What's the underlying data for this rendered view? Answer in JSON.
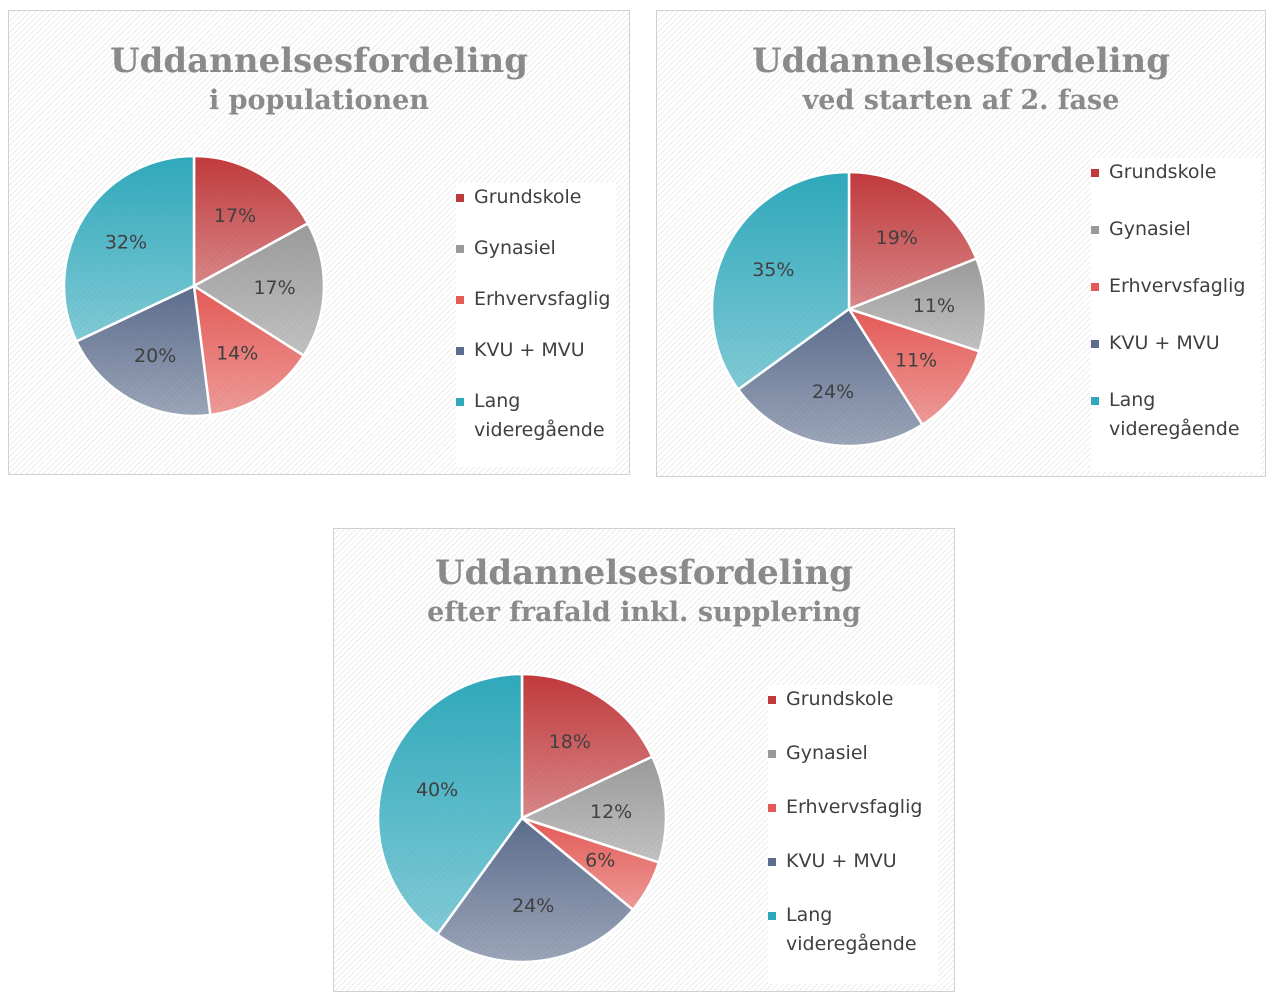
{
  "chart_data": [
    {
      "type": "pie",
      "title": "Uddannelsesfordeling",
      "subtitle": "i populationen",
      "categories": [
        "Grundskole",
        "Gynasiel",
        "Erhvervsfaglig",
        "KVU + MVU",
        "Lang videregående"
      ],
      "values": [
        17,
        17,
        14,
        20,
        32
      ],
      "value_labels": [
        "17%",
        "17%",
        "14%",
        "20%",
        "32%"
      ],
      "colors": [
        "#c0393c",
        "#9a9a9a",
        "#e35a56",
        "#5b6c8c",
        "#2fa8bb"
      ]
    },
    {
      "type": "pie",
      "title": "Uddannelsesfordeling",
      "subtitle": "ved starten af 2. fase",
      "categories": [
        "Grundskole",
        "Gynasiel",
        "Erhvervsfaglig",
        "KVU + MVU",
        "Lang videregående"
      ],
      "values": [
        19,
        11,
        11,
        24,
        35
      ],
      "value_labels": [
        "19%",
        "11%",
        "11%",
        "24%",
        "35%"
      ],
      "colors": [
        "#c0393c",
        "#9a9a9a",
        "#e35a56",
        "#5b6c8c",
        "#2fa8bb"
      ]
    },
    {
      "type": "pie",
      "title": "Uddannelsesfordeling",
      "subtitle": "efter frafald inkl. supplering",
      "categories": [
        "Grundskole",
        "Gynasiel",
        "Erhvervsfaglig",
        "KVU + MVU",
        "Lang videregående"
      ],
      "values": [
        18,
        12,
        6,
        24,
        40
      ],
      "value_labels": [
        "18%",
        "12%",
        "6%",
        "24%",
        "40%"
      ],
      "colors": [
        "#c0393c",
        "#9a9a9a",
        "#e35a56",
        "#5b6c8c",
        "#2fa8bb"
      ]
    }
  ]
}
